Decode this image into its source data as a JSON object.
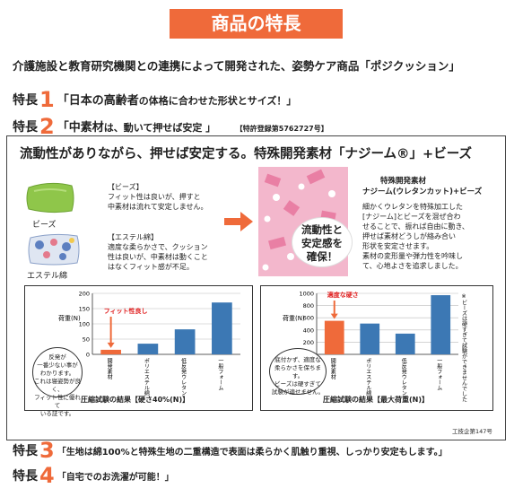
{
  "banner": "商品の特長",
  "intro": "介護施設と教育研究機関との連携によって開発された、姿勢ケア商品「ポジクッション」",
  "features": [
    {
      "prefix": "特長",
      "num": "1",
      "text_pre": "「",
      "text_big": "日本の高齢者",
      "text_small": "の体格に合わせた形状とサイズ！」"
    },
    {
      "prefix": "特長",
      "num": "2",
      "text_pre": "「",
      "text_big": "中素材",
      "text_small": "は、動いて押せば安定 」",
      "patent": "【特許登録第5762727号】"
    },
    {
      "prefix": "特長",
      "num": "3",
      "text": "「生地は綿100%と特殊生地の二重構造で表面は柔らかく肌触り重視、しっかり安定もします。」"
    },
    {
      "prefix": "特長",
      "num": "4",
      "text": "「自宅でのお洗濯が可能！」"
    }
  ],
  "box": {
    "headline": "流動性がありながら、押せば安定する。特殊開発素材「ナジーム®」+ビーズ",
    "beads_label": "ビーズ",
    "ester_label": "エステル綿",
    "beads_title": "【ビーズ】",
    "beads_desc": [
      "フィット性は良いが、押すと",
      "中素材は流れて安定しません。"
    ],
    "ester_title": "【エステル綿】",
    "ester_desc": [
      "適度な柔らかさで、クッション",
      "性は良いが、中素材は動くこと",
      "はなくフィット感が不足。"
    ],
    "bubble": [
      "流動性と",
      "安定感を",
      "確保！"
    ],
    "right_title1": "特殊開発素材",
    "right_title2": "ナジーム(ウレタンカット)+ビーズ",
    "right_desc": [
      "細かくウレタンを特殊加工した",
      "[ナジーム]とビーズを混ぜ合わ",
      "せることで、振れば自由に動き、",
      "押せば素材どうしが絡み合い",
      "形状を安定させます。",
      "素材の変形量や弾力性を吟味し",
      "て、心地よさを追求しました。"
    ],
    "source": "工技企第147号"
  },
  "chart_data": [
    {
      "type": "bar",
      "title": "圧縮試験の結果【硬さ40%(N)】",
      "ylabel": "荷重(N)",
      "ylim": [
        0,
        200
      ],
      "yticks": [
        0,
        50,
        100,
        150,
        200
      ],
      "categories": [
        "開発素材",
        "ポリエステル綿",
        "低反発ウレタン",
        "一般フォーム"
      ],
      "values": [
        15,
        35,
        82,
        170
      ],
      "colors": [
        "#ef6a3a",
        "#3c78b4",
        "#3c78b4",
        "#3c78b4"
      ],
      "annotation": "フィット性良し",
      "note": [
        "反発が",
        "一番少ない事が",
        "わかります。",
        "これは寝姿勢が良く、",
        "フィット性に優れて",
        "いる証です。"
      ]
    },
    {
      "type": "bar",
      "title": "圧縮試験の結果【最大荷重(N)】",
      "ylabel": "荷重(N)",
      "ylim": [
        0,
        1000
      ],
      "yticks": [
        0,
        200,
        400,
        600,
        800,
        1000
      ],
      "categories": [
        "開発素材",
        "ポリエステル綿",
        "低反発ウレタン",
        "一般フォーム"
      ],
      "values": [
        550,
        505,
        340,
        970
      ],
      "colors": [
        "#ef6a3a",
        "#3c78b4",
        "#3c78b4",
        "#3c78b4"
      ],
      "annotation": "適度な硬さ",
      "side_note": "※ビーズは硬すぎて試験ができませんでした",
      "note": [
        "底付かず、適度な",
        "柔らかさを保ちます。",
        "ビーズは硬すぎて",
        "試験が適せません。"
      ]
    }
  ]
}
